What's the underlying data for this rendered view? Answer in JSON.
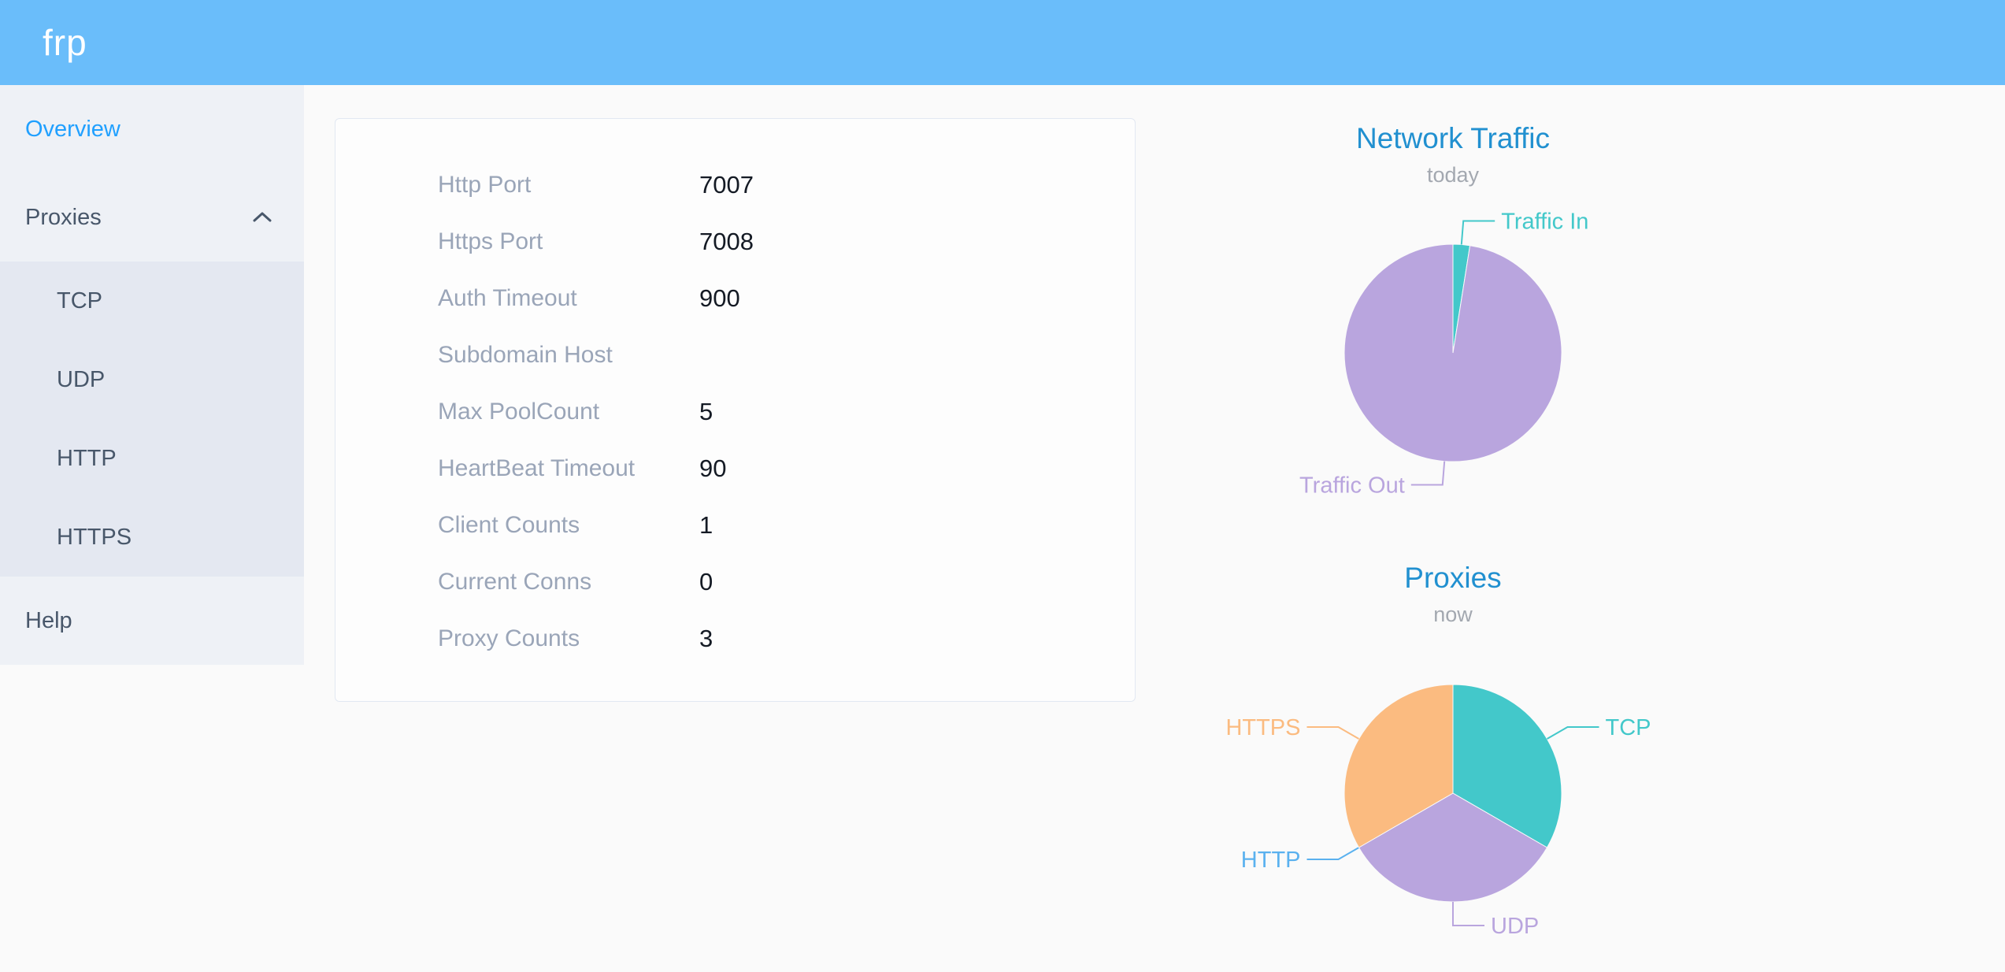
{
  "header": {
    "logo": "frp",
    "background_color": "#6abdfa"
  },
  "sidebar": {
    "overview_label": "Overview",
    "proxies_label": "Proxies",
    "proxies_expanded": true,
    "proxy_types": [
      "TCP",
      "UDP",
      "HTTP",
      "HTTPS"
    ],
    "help_label": "Help",
    "active_item": "Overview",
    "active_color": "#20a0ff",
    "background_color": "#eef1f6",
    "submenu_background_color": "#e4e8f1"
  },
  "server_config": {
    "rows": [
      {
        "label": "Http Port",
        "value": "7007"
      },
      {
        "label": "Https Port",
        "value": "7008"
      },
      {
        "label": "Auth Timeout",
        "value": "900"
      },
      {
        "label": "Subdomain Host",
        "value": ""
      },
      {
        "label": "Max PoolCount",
        "value": "5"
      },
      {
        "label": "HeartBeat Timeout",
        "value": "90"
      },
      {
        "label": "Client Counts",
        "value": "1"
      },
      {
        "label": "Current Conns",
        "value": "0"
      },
      {
        "label": "Proxy Counts",
        "value": "3"
      }
    ]
  },
  "chart_data": [
    {
      "type": "pie",
      "title": "Network Traffic",
      "subtitle": "today",
      "value_unit": "percent_of_total_estimated_from_slice_angles",
      "rotation": "clockwise_from_top",
      "label_layout": "outside-callout",
      "series": [
        {
          "name": "Traffic In",
          "value": 2.5,
          "color": "#43c8ca"
        },
        {
          "name": "Traffic Out",
          "value": 97.5,
          "color": "#b9a5de"
        }
      ],
      "title_color": "#2190d0",
      "subtitle_color": "#a3a8b0"
    },
    {
      "type": "pie",
      "title": "Proxies",
      "subtitle": "now",
      "value_unit": "proxy_count",
      "rotation": "clockwise_from_top",
      "label_layout": "outside-callout",
      "series": [
        {
          "name": "TCP",
          "value": 1,
          "color": "#43c8ca"
        },
        {
          "name": "UDP",
          "value": 1,
          "color": "#b9a5de"
        },
        {
          "name": "HTTP",
          "value": 0,
          "color": "#5ab1ef"
        },
        {
          "name": "HTTPS",
          "value": 1,
          "color": "#fbbb80"
        }
      ],
      "title_color": "#2190d0",
      "subtitle_color": "#a3a8b0"
    }
  ]
}
